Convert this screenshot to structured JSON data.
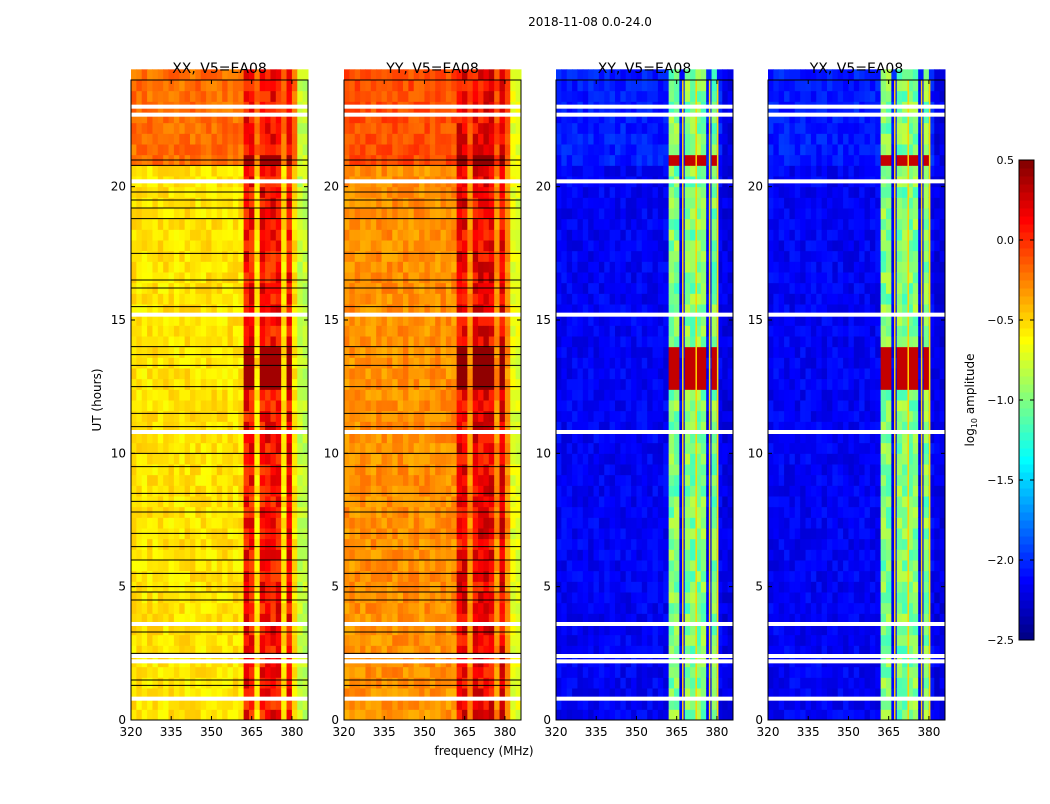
{
  "chart_data": {
    "type": "heatmap",
    "title": "2018-11-08 0.0-24.0",
    "xlabel": "frequency (MHz)",
    "ylabel": "UT (hours)",
    "xlim": [
      320,
      386
    ],
    "ylim": [
      0,
      24
    ],
    "xticks": [
      "320",
      "335",
      "350",
      "365",
      "380"
    ],
    "xtick_values": [
      320,
      335,
      350,
      365,
      380
    ],
    "yticks": [
      "0",
      "5",
      "10",
      "15",
      "20"
    ],
    "ytick_values": [
      0,
      5,
      10,
      15,
      20
    ],
    "colorbar": {
      "label": "log10 amplitude",
      "label_main": "log",
      "label_sub": "10",
      "label_rest": " amplitude",
      "colormap": "jet",
      "range": [
        -2.5,
        0.5
      ],
      "ticks": [
        "0.5",
        "0.0",
        "−0.5",
        "−1.0",
        "−1.5",
        "−2.0",
        "−2.5"
      ],
      "tick_values": [
        0.5,
        0.0,
        -0.5,
        -1.0,
        -1.5,
        -2.0,
        -2.5
      ]
    },
    "panels": [
      {
        "title": "XX, V5=EA08",
        "polarization": "XX",
        "baseline_low": -0.55,
        "baseline_high": -0.2,
        "band_level": 0.1,
        "band_peak": 0.4,
        "edge_level": -0.8,
        "black_lines": true
      },
      {
        "title": "YY, V5=EA08",
        "polarization": "YY",
        "baseline_low": -0.3,
        "baseline_high": -0.1,
        "band_level": 0.15,
        "band_peak": 0.45,
        "edge_level": -0.7,
        "black_lines": true
      },
      {
        "title": "XY, V5=EA08",
        "polarization": "XY",
        "baseline_low": -2.15,
        "baseline_high": -2.05,
        "band_level": -1.0,
        "band_peak": 0.3,
        "edge_level": -2.2,
        "black_lines": false
      },
      {
        "title": "YX, V5=EA08",
        "polarization": "YX",
        "baseline_low": -2.15,
        "baseline_high": -2.05,
        "band_level": -1.0,
        "band_peak": 0.3,
        "edge_level": -2.2,
        "black_lines": false
      }
    ],
    "rfi_bands_mhz": [
      [
        363,
        367
      ],
      [
        368,
        372
      ],
      [
        373,
        377
      ],
      [
        378,
        380
      ]
    ],
    "strong_rfi_hours": [
      [
        12.3,
        14.0
      ],
      [
        20.8,
        21.2
      ]
    ],
    "flagged_rows_hours": [
      0.8,
      2.2,
      2.4,
      3.6,
      10.8,
      15.2,
      20.2,
      22.7,
      23.0
    ],
    "black_line_hours": [
      1.3,
      1.5,
      2.5,
      3.3,
      4.5,
      4.8,
      5.0,
      5.5,
      6.0,
      6.5,
      7.0,
      7.8,
      8.2,
      8.5,
      9.5,
      10.0,
      11.0,
      11.5,
      12.5,
      13.3,
      13.7,
      14.0,
      15.5,
      16.2,
      16.5,
      17.5,
      18.8,
      19.2,
      19.5,
      19.8,
      20.8,
      21.0
    ]
  }
}
